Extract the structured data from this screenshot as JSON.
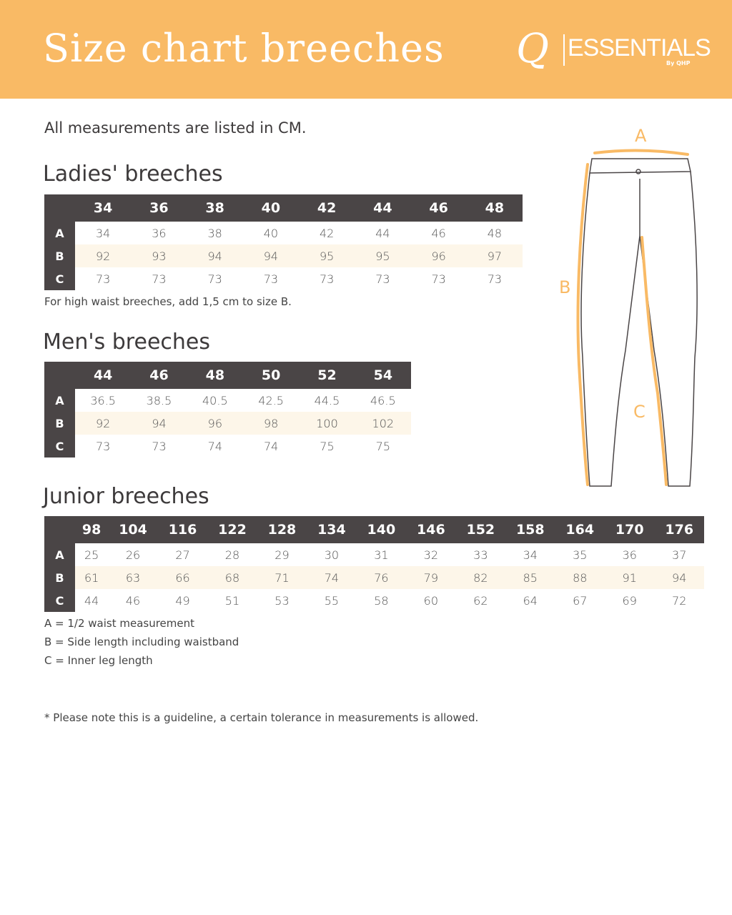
{
  "header": {
    "title": "Size chart breeches",
    "logo_text": "Q|ESSENTIALS By QHP"
  },
  "intro": "All measurements are listed in CM.",
  "ladies": {
    "title": "Ladies' breeches",
    "sizes": [
      "34",
      "36",
      "38",
      "40",
      "42",
      "44",
      "46",
      "48"
    ],
    "rows": [
      {
        "label": "A",
        "values": [
          "34",
          "36",
          "38",
          "40",
          "42",
          "44",
          "46",
          "48"
        ]
      },
      {
        "label": "B",
        "values": [
          "92",
          "93",
          "94",
          "94",
          "95",
          "95",
          "96",
          "97"
        ]
      },
      {
        "label": "C",
        "values": [
          "73",
          "73",
          "73",
          "73",
          "73",
          "73",
          "73",
          "73"
        ]
      }
    ],
    "note": "For high waist breeches, add 1,5 cm to size B."
  },
  "men": {
    "title": "Men's breeches",
    "sizes": [
      "44",
      "46",
      "48",
      "50",
      "52",
      "54"
    ],
    "rows": [
      {
        "label": "A",
        "values": [
          "36.5",
          "38.5",
          "40.5",
          "42.5",
          "44.5",
          "46.5"
        ]
      },
      {
        "label": "B",
        "values": [
          "92",
          "94",
          "96",
          "98",
          "100",
          "102"
        ]
      },
      {
        "label": "C",
        "values": [
          "73",
          "73",
          "74",
          "74",
          "75",
          "75"
        ]
      }
    ]
  },
  "junior": {
    "title": "Junior breeches",
    "sizes": [
      "98",
      "104",
      "116",
      "122",
      "128",
      "134",
      "140",
      "146",
      "152",
      "158",
      "164",
      "170",
      "176"
    ],
    "rows": [
      {
        "label": "A",
        "values": [
          "25",
          "26",
          "27",
          "28",
          "29",
          "30",
          "31",
          "32",
          "33",
          "34",
          "35",
          "36",
          "37"
        ]
      },
      {
        "label": "B",
        "values": [
          "61",
          "63",
          "66",
          "68",
          "71",
          "74",
          "76",
          "79",
          "82",
          "85",
          "88",
          "91",
          "94"
        ]
      },
      {
        "label": "C",
        "values": [
          "44",
          "46",
          "49",
          "51",
          "53",
          "55",
          "58",
          "60",
          "62",
          "64",
          "67",
          "69",
          "72"
        ]
      }
    ]
  },
  "legend": [
    "A = 1/2 waist measurement",
    "B = Side length including waistband",
    "C = Inner leg length"
  ],
  "disclaimer": "* Please note this is a guideline, a certain tolerance in measurements is allowed.",
  "diagram": {
    "labels": [
      "A",
      "B",
      "C"
    ]
  },
  "colors": {
    "accent": "#f9ba65",
    "dark": "#4a4546",
    "stripe": "#fdf6e9"
  }
}
